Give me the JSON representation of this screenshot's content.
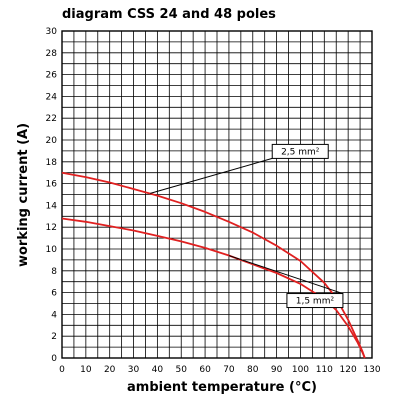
{
  "chart_data": {
    "type": "line",
    "title": "diagram CSS 24 and 48 poles",
    "xlabel": "ambient temperature (°C)",
    "ylabel": "working current (A)",
    "xlim": [
      0,
      130
    ],
    "ylim": [
      0,
      30
    ],
    "x_ticks": [
      0,
      10,
      20,
      30,
      40,
      50,
      60,
      70,
      80,
      90,
      100,
      110,
      120,
      130
    ],
    "y_ticks": [
      0,
      2,
      4,
      6,
      8,
      10,
      12,
      14,
      16,
      18,
      20,
      22,
      24,
      26,
      28,
      30
    ],
    "grid": true,
    "line_color": "#e02020",
    "series": [
      {
        "name": "2,5 mm²",
        "x": [
          0,
          10,
          20,
          30,
          40,
          50,
          60,
          70,
          80,
          90,
          100,
          110,
          115,
          120,
          124,
          126,
          127
        ],
        "y": [
          17.0,
          16.6,
          16.1,
          15.5,
          14.9,
          14.2,
          13.4,
          12.5,
          11.5,
          10.3,
          8.9,
          6.9,
          5.5,
          3.5,
          1.6,
          0.6,
          0.0
        ]
      },
      {
        "name": "1,5 mm²",
        "x": [
          0,
          10,
          20,
          30,
          40,
          50,
          60,
          70,
          80,
          90,
          100,
          110,
          115,
          120,
          124,
          126,
          127
        ],
        "y": [
          12.8,
          12.5,
          12.1,
          11.7,
          11.2,
          10.7,
          10.1,
          9.4,
          8.6,
          7.8,
          6.8,
          5.4,
          4.4,
          2.9,
          1.4,
          0.5,
          0.0
        ]
      }
    ],
    "annotations": [
      {
        "text": "2,5 mm²",
        "series": "2,5 mm²",
        "target_x": 37,
        "target_y": 15.1
      },
      {
        "text": "1,5 mm²",
        "series": "1,5 mm²",
        "target_x": 70,
        "target_y": 9.4
      }
    ]
  }
}
